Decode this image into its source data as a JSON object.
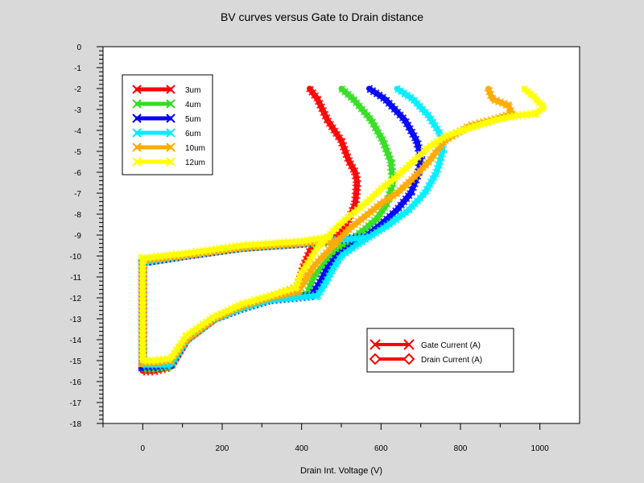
{
  "chart_data": {
    "type": "line",
    "title": "BV curves versus Gate to Drain distance",
    "xlabel": "Drain Int. Voltage (V)",
    "ylabel": "",
    "xlim": [
      -100,
      1100
    ],
    "ylim": [
      -18,
      0
    ],
    "xticks": [
      0,
      200,
      400,
      600,
      800,
      1000
    ],
    "yticks": [
      0,
      -1,
      -2,
      -3,
      -4,
      -5,
      -6,
      -7,
      -8,
      -9,
      -10,
      -11,
      -12,
      -13,
      -14,
      -15,
      -16,
      -17,
      -18
    ],
    "grid": false,
    "legend_position": "top-left",
    "series": [
      {
        "name": "3um",
        "color": "#ff0000",
        "gate": [
          [
            420,
            -2
          ],
          [
            440,
            -2.5
          ],
          [
            465,
            -3.5
          ],
          [
            500,
            -4.5
          ],
          [
            520,
            -5.5
          ],
          [
            535,
            -6
          ],
          [
            540,
            -6.5
          ],
          [
            535,
            -7.5
          ],
          [
            520,
            -8.2
          ],
          [
            495,
            -9
          ],
          [
            455,
            -9.3
          ],
          [
            430,
            -9.4
          ],
          [
            420,
            -9.8
          ],
          [
            405,
            -10.5
          ],
          [
            390,
            -11.5
          ],
          [
            320,
            -12
          ],
          [
            250,
            -12.4
          ],
          [
            180,
            -13
          ],
          [
            110,
            -14
          ],
          [
            70,
            -15.3
          ],
          [
            30,
            -15.5
          ],
          [
            0,
            -15.5
          ],
          [
            0,
            -10.3
          ],
          [
            100,
            -10
          ],
          [
            250,
            -9.6
          ],
          [
            400,
            -9.4
          ],
          [
            455,
            -9.3
          ]
        ],
        "drain": []
      },
      {
        "name": "4um",
        "color": "#33dd22",
        "gate": [
          [
            500,
            -2
          ],
          [
            530,
            -2.5
          ],
          [
            575,
            -3.5
          ],
          [
            605,
            -4.5
          ],
          [
            625,
            -5.5
          ],
          [
            630,
            -6.5
          ],
          [
            615,
            -7.5
          ],
          [
            590,
            -8.2
          ],
          [
            560,
            -8.7
          ],
          [
            520,
            -9.3
          ],
          [
            490,
            -9.7
          ],
          [
            460,
            -10.3
          ],
          [
            430,
            -11
          ],
          [
            415,
            -11.8
          ],
          [
            320,
            -12.1
          ],
          [
            250,
            -12.5
          ],
          [
            180,
            -13
          ],
          [
            110,
            -14
          ],
          [
            70,
            -15.3
          ],
          [
            30,
            -15.4
          ],
          [
            0,
            -15.4
          ],
          [
            0,
            -10.3
          ],
          [
            100,
            -10
          ],
          [
            250,
            -9.6
          ],
          [
            400,
            -9.4
          ],
          [
            520,
            -9.3
          ]
        ],
        "drain": []
      },
      {
        "name": "5um",
        "color": "#0000ff",
        "gate": [
          [
            570,
            -2
          ],
          [
            610,
            -2.5
          ],
          [
            660,
            -3.5
          ],
          [
            690,
            -4.5
          ],
          [
            700,
            -5.3
          ],
          [
            695,
            -6
          ],
          [
            675,
            -7
          ],
          [
            640,
            -7.8
          ],
          [
            600,
            -8.5
          ],
          [
            560,
            -9.1
          ],
          [
            520,
            -9.6
          ],
          [
            490,
            -10
          ],
          [
            465,
            -10.6
          ],
          [
            445,
            -11.3
          ],
          [
            425,
            -11.9
          ],
          [
            320,
            -12.1
          ],
          [
            250,
            -12.5
          ],
          [
            180,
            -13
          ],
          [
            110,
            -14
          ],
          [
            70,
            -15.2
          ],
          [
            30,
            -15.3
          ],
          [
            0,
            -15.3
          ],
          [
            0,
            -10.3
          ],
          [
            100,
            -10
          ],
          [
            250,
            -9.6
          ],
          [
            400,
            -9.4
          ],
          [
            560,
            -9.1
          ]
        ],
        "drain": []
      },
      {
        "name": "6um",
        "color": "#00eeff",
        "gate": [
          [
            640,
            -2
          ],
          [
            680,
            -2.5
          ],
          [
            720,
            -3.3
          ],
          [
            750,
            -4.2
          ],
          [
            755,
            -5
          ],
          [
            740,
            -6
          ],
          [
            710,
            -7
          ],
          [
            670,
            -7.8
          ],
          [
            620,
            -8.5
          ],
          [
            570,
            -9.1
          ],
          [
            530,
            -9.6
          ],
          [
            500,
            -10
          ],
          [
            480,
            -10.6
          ],
          [
            460,
            -11.3
          ],
          [
            440,
            -11.9
          ],
          [
            320,
            -12.1
          ],
          [
            250,
            -12.5
          ],
          [
            180,
            -13
          ],
          [
            110,
            -14
          ],
          [
            70,
            -15.2
          ],
          [
            30,
            -15.2
          ],
          [
            0,
            -15.2
          ],
          [
            0,
            -10.3
          ],
          [
            100,
            -10
          ],
          [
            250,
            -9.6
          ],
          [
            400,
            -9.4
          ],
          [
            570,
            -9.1
          ]
        ],
        "drain": []
      },
      {
        "name": "10um",
        "color": "#ffaa00",
        "gate": [
          [
            870,
            -2
          ],
          [
            880,
            -2.5
          ],
          [
            920,
            -2.8
          ],
          [
            930,
            -3.2
          ],
          [
            880,
            -3.5
          ],
          [
            820,
            -3.8
          ],
          [
            760,
            -4.5
          ],
          [
            720,
            -5.5
          ],
          [
            680,
            -6.3
          ],
          [
            640,
            -7
          ],
          [
            600,
            -7.5
          ],
          [
            560,
            -8.1
          ],
          [
            520,
            -8.7
          ],
          [
            490,
            -9.3
          ],
          [
            455,
            -10
          ],
          [
            430,
            -10.5
          ],
          [
            405,
            -11.3
          ],
          [
            390,
            -11.7
          ],
          [
            320,
            -12
          ],
          [
            250,
            -12.4
          ],
          [
            180,
            -13
          ],
          [
            110,
            -14
          ],
          [
            70,
            -15
          ],
          [
            30,
            -15.1
          ],
          [
            0,
            -15.1
          ],
          [
            0,
            -10.2
          ],
          [
            100,
            -10
          ],
          [
            250,
            -9.6
          ],
          [
            400,
            -9.4
          ],
          [
            490,
            -9.3
          ]
        ],
        "drain": []
      },
      {
        "name": "12um",
        "color": "#ffff00",
        "gate": [
          [
            960,
            -2
          ],
          [
            985,
            -2.4
          ],
          [
            1010,
            -2.9
          ],
          [
            990,
            -3.2
          ],
          [
            940,
            -3.3
          ],
          [
            890,
            -3.5
          ],
          [
            820,
            -3.9
          ],
          [
            760,
            -4.3
          ],
          [
            720,
            -4.8
          ],
          [
            680,
            -5.5
          ],
          [
            640,
            -6.2
          ],
          [
            600,
            -6.8
          ],
          [
            560,
            -7.5
          ],
          [
            520,
            -8.1
          ],
          [
            490,
            -8.6
          ],
          [
            465,
            -9.1
          ],
          [
            440,
            -9.6
          ],
          [
            420,
            -10.2
          ],
          [
            400,
            -10.8
          ],
          [
            385,
            -11.5
          ],
          [
            320,
            -11.9
          ],
          [
            250,
            -12.3
          ],
          [
            180,
            -12.9
          ],
          [
            110,
            -13.8
          ],
          [
            70,
            -14.9
          ],
          [
            30,
            -15
          ],
          [
            0,
            -15
          ],
          [
            0,
            -10.1
          ],
          [
            100,
            -9.9
          ],
          [
            250,
            -9.5
          ],
          [
            400,
            -9.3
          ],
          [
            470,
            -9.1
          ]
        ],
        "drain": []
      }
    ],
    "legend2": [
      {
        "label": "Gate Current (A)",
        "marker": "x",
        "color": "#ff0000"
      },
      {
        "label": "Drain Current (A)",
        "marker": "diamond",
        "color": "#ff0000"
      }
    ]
  }
}
